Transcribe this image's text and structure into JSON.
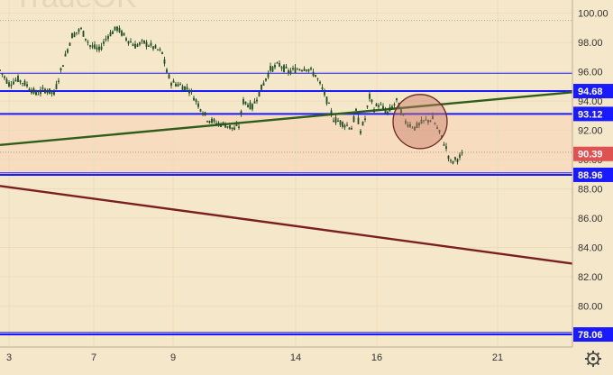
{
  "watermark": "TradeOK",
  "settings_icon": "gear-icon",
  "colors": {
    "background": "#f5e7c9",
    "shaded_band": "#f8dcc0",
    "blue_line": "#1a1aff",
    "green_line": "#2e5e1a",
    "maroon_line": "#7a1f1f",
    "current_price": "#e05151",
    "candle": "#1e4d24",
    "circle": "#c87866"
  },
  "chart_data": {
    "type": "line",
    "ylim": [
      77.2,
      100.9
    ],
    "xlim": [
      0,
      635
    ],
    "y_ticks": [
      "100.00",
      "98.00",
      "96.00",
      "94.00",
      "92.00",
      "90.00",
      "88.00",
      "86.00",
      "84.00",
      "82.00",
      "80.00"
    ],
    "x_ticks": [
      {
        "label": "3",
        "x": 10
      },
      {
        "label": "7",
        "x": 104
      },
      {
        "label": "9",
        "x": 192
      },
      {
        "label": "14",
        "x": 328
      },
      {
        "label": "16",
        "x": 418
      },
      {
        "label": "21",
        "x": 552
      }
    ],
    "horizontal_levels": [
      {
        "label": "94.68",
        "value": 94.68,
        "style": "thick"
      },
      {
        "label": "93.12",
        "value": 93.12,
        "style": "thick"
      },
      {
        "label": "88.96",
        "value": 88.96,
        "style": "thick"
      },
      {
        "label": "78.06",
        "value": 78.06,
        "style": "thick"
      },
      {
        "label": "",
        "value": 95.9,
        "style": "thin"
      },
      {
        "label": "",
        "value": 89.1,
        "style": "thin"
      },
      {
        "label": "",
        "value": 78.2,
        "style": "thin"
      }
    ],
    "current_price": {
      "label": "90.39",
      "value": 90.39
    },
    "dotted_lines": [
      99.5,
      90.5
    ],
    "trendlines": [
      {
        "name": "green",
        "from": [
          0,
          91.0
        ],
        "to": [
          635,
          94.6
        ]
      },
      {
        "name": "maroon",
        "from": [
          0,
          88.2
        ],
        "to": [
          635,
          82.9
        ]
      }
    ],
    "highlight_circle": {
      "center": [
        466,
        92.6
      ],
      "radius_x": 30
    },
    "price_series": [
      [
        0,
        96.1
      ],
      [
        10,
        95.2
      ],
      [
        20,
        95.5
      ],
      [
        30,
        95.1
      ],
      [
        40,
        94.5
      ],
      [
        50,
        94.8
      ],
      [
        60,
        94.5
      ],
      [
        70,
        96.6
      ],
      [
        80,
        98.5
      ],
      [
        90,
        98.9
      ],
      [
        100,
        97.8
      ],
      [
        110,
        97.5
      ],
      [
        120,
        98.5
      ],
      [
        130,
        99.0
      ],
      [
        140,
        98.3
      ],
      [
        150,
        97.8
      ],
      [
        160,
        98.0
      ],
      [
        170,
        97.7
      ],
      [
        180,
        97.3
      ],
      [
        185,
        96.0
      ],
      [
        190,
        95.3
      ],
      [
        200,
        95.1
      ],
      [
        210,
        94.8
      ],
      [
        220,
        93.8
      ],
      [
        230,
        92.8
      ],
      [
        240,
        92.5
      ],
      [
        250,
        92.4
      ],
      [
        260,
        92.1
      ],
      [
        265,
        92.3
      ],
      [
        270,
        94.0
      ],
      [
        280,
        93.6
      ],
      [
        290,
        94.9
      ],
      [
        300,
        96.2
      ],
      [
        310,
        96.5
      ],
      [
        320,
        96.0
      ],
      [
        330,
        96.2
      ],
      [
        340,
        96.3
      ],
      [
        350,
        95.8
      ],
      [
        360,
        94.5
      ],
      [
        370,
        92.8
      ],
      [
        380,
        92.5
      ],
      [
        390,
        92.2
      ],
      [
        395,
        93.3
      ],
      [
        400,
        92.0
      ],
      [
        405,
        92.8
      ],
      [
        410,
        94.3
      ],
      [
        415,
        93.5
      ],
      [
        420,
        93.8
      ],
      [
        430,
        93.2
      ],
      [
        440,
        94.0
      ],
      [
        450,
        92.6
      ],
      [
        460,
        92.2
      ],
      [
        470,
        92.6
      ],
      [
        480,
        92.8
      ],
      [
        490,
        91.5
      ],
      [
        495,
        90.8
      ],
      [
        500,
        89.8
      ],
      [
        505,
        90.0
      ],
      [
        510,
        90.2
      ],
      [
        515,
        90.4
      ]
    ]
  }
}
